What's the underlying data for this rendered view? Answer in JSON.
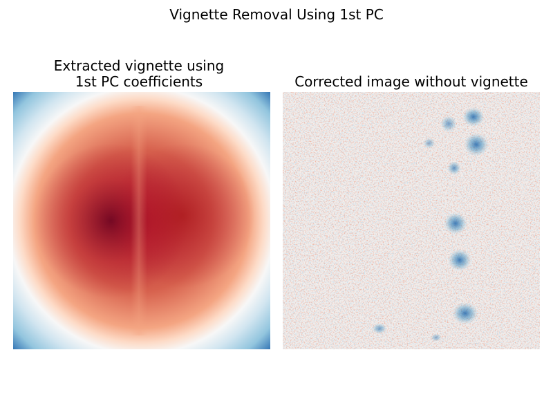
{
  "figure": {
    "suptitle": "Vignette Removal Using 1st PC",
    "colormap": "RdBu",
    "colors": {
      "deep_red": "#67001f",
      "red": "#b2182b",
      "light_red": "#f4a582",
      "white": "#f7f7f7",
      "light_blue": "#92c5de",
      "blue": "#2166ac"
    },
    "panels": [
      {
        "title_line1": "Extracted vignette using",
        "title_line2": "1st PC coefficients",
        "content": "vignette-image"
      },
      {
        "title": "Corrected image without vignette",
        "content": "corrected-image"
      }
    ]
  }
}
